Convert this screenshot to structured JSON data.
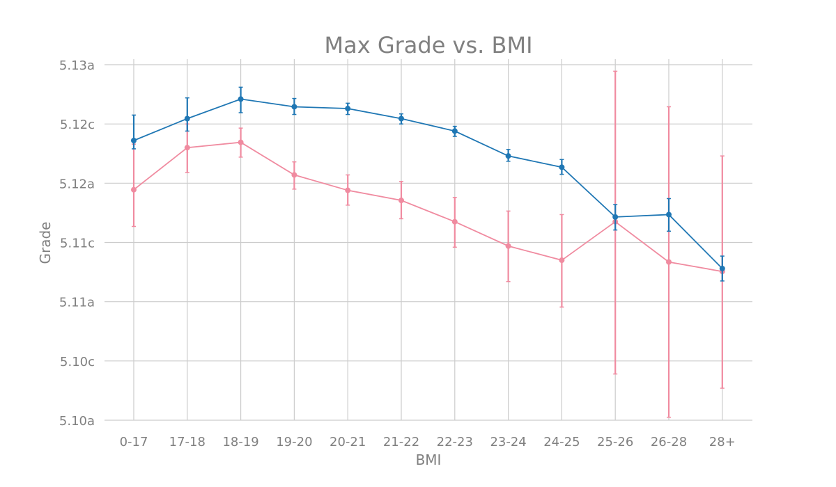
{
  "chart_data": {
    "type": "line",
    "title": "Max Grade vs. BMI",
    "xlabel": "BMI",
    "ylabel": "Grade",
    "categories": [
      "0-17",
      "17-18",
      "18-19",
      "19-20",
      "20-21",
      "21-22",
      "22-23",
      "23-24",
      "24-25",
      "25-26",
      "26-28",
      "28+"
    ],
    "y_tick_labels": [
      "5.10a",
      "5.10c",
      "5.11a",
      "5.11c",
      "5.12a",
      "5.12c",
      "5.13a"
    ],
    "y_tick_values": [
      0,
      1,
      2,
      3,
      4,
      5,
      6
    ],
    "ylim": [
      0,
      6
    ],
    "grid": true,
    "legend": "none",
    "series": [
      {
        "color": "#1f77b4",
        "values": [
          4.72,
          5.09,
          5.42,
          5.29,
          5.26,
          5.09,
          4.88,
          4.46,
          4.27,
          3.43,
          3.47,
          2.56
        ],
        "error_low": [
          4.58,
          4.88,
          5.19,
          5.16,
          5.16,
          5.0,
          4.79,
          4.37,
          4.15,
          3.21,
          3.19,
          2.35
        ],
        "error_high": [
          5.15,
          5.44,
          5.62,
          5.43,
          5.35,
          5.17,
          4.96,
          4.57,
          4.4,
          3.64,
          3.74,
          2.77
        ]
      },
      {
        "color": "#f08ba0",
        "values": [
          3.89,
          4.6,
          4.69,
          4.14,
          3.88,
          3.71,
          3.35,
          2.94,
          2.7,
          3.35,
          2.67,
          2.51
        ],
        "error_low": [
          3.27,
          4.18,
          4.44,
          3.9,
          3.63,
          3.4,
          2.92,
          2.34,
          1.91,
          0.78,
          0.05,
          0.54
        ],
        "error_high": [
          4.66,
          5.0,
          4.93,
          4.36,
          4.14,
          4.03,
          3.76,
          3.53,
          3.47,
          5.89,
          5.29,
          4.46
        ]
      }
    ]
  }
}
